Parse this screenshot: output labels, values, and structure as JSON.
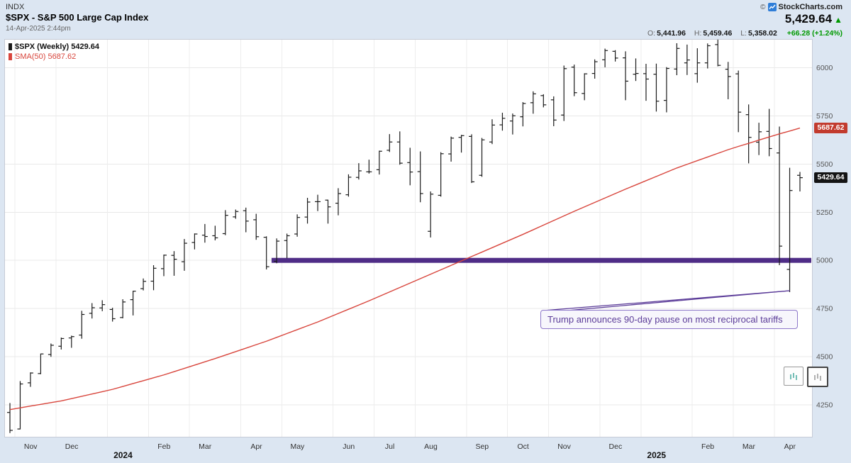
{
  "header": {
    "exchange": "INDX",
    "title": "$SPX - S&P 500 Large Cap Index",
    "timestamp": "14-Apr-2025 2:44pm",
    "logo": {
      "prefix": "©",
      "name": "StockCharts.com"
    },
    "price": "5,429.64",
    "direction": "▲",
    "quote": {
      "open_label": "O:",
      "open": "5,441.96",
      "high_label": "H:",
      "high": "5,459.46",
      "low_label": "L:",
      "low": "5,358.02",
      "change": "+66.28 (+1.24%)"
    }
  },
  "legend": {
    "series1": "$SPX (Weekly) 5429.64",
    "series2": "SMA(50) 5687.62"
  },
  "axis_labels": {
    "sma_label": "5687.62",
    "close_label": "5429.64"
  },
  "colors": {
    "bg": "#dce6f2",
    "bar": "#1a1a1a",
    "sma_red": "#d8453c",
    "support_purple": "#4f2d87",
    "annotation_purple": "#5c3d99",
    "up_green": "#009900",
    "sma_label_bg": "#c23b2e",
    "close_label_bg": "#141414"
  },
  "chart_data": {
    "type": "bar",
    "subtype": "weekly-ohlc-bars-with-sma-overlay",
    "title": "$SPX - S&P 500 Large Cap Index",
    "ylim": [
      4080,
      6150
    ],
    "y_ticks": [
      4250,
      4500,
      4750,
      5000,
      5250,
      5500,
      5750,
      6000
    ],
    "x_tick_labels": [
      "Nov",
      "Dec",
      "2024",
      "Feb",
      "Mar",
      "Apr",
      "May",
      "Jun",
      "Jul",
      "Aug",
      "Sep",
      "Oct",
      "Nov",
      "Dec",
      "2025",
      "Feb",
      "Mar",
      "Apr"
    ],
    "grid": true,
    "legend_position": "top-left",
    "support_line": {
      "value": 5000,
      "start_index": 25.5
    },
    "callout": {
      "text": "Trump announces 90-day pause on most reciprocal tariffs",
      "target_index": 76
    },
    "last_close": 5429.64,
    "sma_last": 5687.62,
    "bars": [
      [
        "2023-10-27",
        4210,
        4259,
        4103,
        4117
      ],
      [
        "2023-11-03",
        4124,
        4373,
        4122,
        4358
      ],
      [
        "2023-11-10",
        4364,
        4418,
        4343,
        4415
      ],
      [
        "2023-11-17",
        4412,
        4516,
        4409,
        4514
      ],
      [
        "2023-11-24",
        4511,
        4568,
        4499,
        4559
      ],
      [
        "2023-12-01",
        4554,
        4599,
        4537,
        4594
      ],
      [
        "2023-12-08",
        4597,
        4609,
        4546,
        4604
      ],
      [
        "2023-12-15",
        4612,
        4738,
        4593,
        4719
      ],
      [
        "2023-12-22",
        4725,
        4778,
        4698,
        4754
      ],
      [
        "2023-12-29",
        4753,
        4793,
        4736,
        4770
      ],
      [
        "2024-01-05",
        4745,
        4754,
        4682,
        4697
      ],
      [
        "2024-01-12",
        4703,
        4798,
        4699,
        4784
      ],
      [
        "2024-01-19",
        4796,
        4842,
        4714,
        4840
      ],
      [
        "2024-01-26",
        4853,
        4906,
        4844,
        4891
      ],
      [
        "2024-02-02",
        4892,
        4975,
        4845,
        4959
      ],
      [
        "2024-02-09",
        4957,
        5030,
        4918,
        5027
      ],
      [
        "2024-02-16",
        5026,
        5048,
        4920,
        5006
      ],
      [
        "2024-02-23",
        4993,
        5111,
        4946,
        5089
      ],
      [
        "2024-03-01",
        5093,
        5140,
        5057,
        5137
      ],
      [
        "2024-03-08",
        5131,
        5189,
        5092,
        5124
      ],
      [
        "2024-03-15",
        5128,
        5180,
        5104,
        5117
      ],
      [
        "2024-03-22",
        5139,
        5261,
        5131,
        5234
      ],
      [
        "2024-03-28",
        5226,
        5264,
        5216,
        5254
      ],
      [
        "2024-04-05",
        5258,
        5274,
        5146,
        5204
      ],
      [
        "2024-04-12",
        5211,
        5242,
        5107,
        5123
      ],
      [
        "2024-04-19",
        5120,
        5125,
        4953,
        4967
      ],
      [
        "2024-04-26",
        4995,
        5114,
        4985,
        5100
      ],
      [
        "2024-05-03",
        5103,
        5139,
        5011,
        5128
      ],
      [
        "2024-05-10",
        5137,
        5239,
        5123,
        5223
      ],
      [
        "2024-05-17",
        5225,
        5325,
        5191,
        5303
      ],
      [
        "2024-05-24",
        5305,
        5341,
        5256,
        5305
      ],
      [
        "2024-05-31",
        5313,
        5315,
        5191,
        5278
      ],
      [
        "2024-06-07",
        5297,
        5375,
        5234,
        5347
      ],
      [
        "2024-06-14",
        5341,
        5447,
        5331,
        5432
      ],
      [
        "2024-06-21",
        5431,
        5505,
        5420,
        5465
      ],
      [
        "2024-06-28",
        5460,
        5523,
        5451,
        5460
      ],
      [
        "2024-07-05",
        5471,
        5570,
        5446,
        5567
      ],
      [
        "2024-07-12",
        5572,
        5656,
        5563,
        5615
      ],
      [
        "2024-07-19",
        5615,
        5670,
        5497,
        5505
      ],
      [
        "2024-07-26",
        5508,
        5585,
        5390,
        5459
      ],
      [
        "2024-08-02",
        5461,
        5566,
        5302,
        5347
      ],
      [
        "2024-08-09",
        5151,
        5358,
        5119,
        5344
      ],
      [
        "2024-08-16",
        5338,
        5562,
        5331,
        5554
      ],
      [
        "2024-08-23",
        5553,
        5643,
        5513,
        5635
      ],
      [
        "2024-08-30",
        5639,
        5652,
        5560,
        5648
      ],
      [
        "2024-09-06",
        5644,
        5655,
        5402,
        5408
      ],
      [
        "2024-09-13",
        5442,
        5636,
        5434,
        5626
      ],
      [
        "2024-09-20",
        5615,
        5733,
        5604,
        5703
      ],
      [
        "2024-09-27",
        5704,
        5767,
        5674,
        5738
      ],
      [
        "2024-10-04",
        5724,
        5763,
        5654,
        5751
      ],
      [
        "2024-10-11",
        5746,
        5822,
        5696,
        5815
      ],
      [
        "2024-10-18",
        5819,
        5878,
        5762,
        5865
      ],
      [
        "2024-10-25",
        5856,
        5863,
        5795,
        5808
      ],
      [
        "2024-11-01",
        5834,
        5852,
        5697,
        5729
      ],
      [
        "2024-11-08",
        5755,
        6012,
        5724,
        5996
      ],
      [
        "2024-11-15",
        6004,
        6017,
        5853,
        5871
      ],
      [
        "2024-11-22",
        5867,
        5972,
        5832,
        5969
      ],
      [
        "2024-11-29",
        5971,
        6044,
        5944,
        6032
      ],
      [
        "2024-12-06",
        6042,
        6100,
        6003,
        6090
      ],
      [
        "2024-12-13",
        6086,
        6092,
        6033,
        6051
      ],
      [
        "2024-12-20",
        6052,
        6086,
        5832,
        5931
      ],
      [
        "2024-12-27",
        5967,
        6049,
        5932,
        5971
      ],
      [
        "2025-01-03",
        5970,
        6021,
        5829,
        5942
      ],
      [
        "2025-01-10",
        5967,
        6022,
        5773,
        5827
      ],
      [
        "2025-01-17",
        5831,
        6004,
        5769,
        5997
      ],
      [
        "2025-01-24",
        5994,
        6128,
        5962,
        6101
      ],
      [
        "2025-01-31",
        6026,
        6121,
        5963,
        6041
      ],
      [
        "2025-02-07",
        5970,
        6102,
        5923,
        6026
      ],
      [
        "2025-02-14",
        6026,
        6127,
        5997,
        6115
      ],
      [
        "2025-02-21",
        6121,
        6147,
        6008,
        6013
      ],
      [
        "2025-02-28",
        5993,
        6031,
        5837,
        5955
      ],
      [
        "2025-03-07",
        5969,
        5986,
        5666,
        5770
      ],
      [
        "2025-03-14",
        5757,
        5810,
        5504,
        5639
      ],
      [
        "2025-03-21",
        5614,
        5715,
        5547,
        5668
      ],
      [
        "2025-03-28",
        5670,
        5787,
        5541,
        5581
      ],
      [
        "2025-04-04",
        5558,
        5695,
        4975,
        5074
      ],
      [
        "2025-04-11",
        4953,
        5481,
        4835,
        5363
      ],
      [
        "2025-04-14",
        5441.96,
        5459.46,
        5358.02,
        5429.64
      ]
    ],
    "sma50": [
      4225,
      4234,
      4243,
      4252,
      4261,
      4270,
      4282,
      4294,
      4306,
      4318,
      4330,
      4345,
      4360,
      4375,
      4390,
      4405,
      4422,
      4439,
      4456,
      4473,
      4490,
      4508,
      4526,
      4544,
      4562,
      4580,
      4600,
      4620,
      4640,
      4660,
      4680,
      4702,
      4724,
      4746,
      4768,
      4790,
      4813,
      4836,
      4859,
      4882,
      4905,
      4928,
      4951,
      4974,
      4997,
      5020,
      5043,
      5066,
      5089,
      5112,
      5135,
      5159,
      5183,
      5207,
      5231,
      5255,
      5278,
      5301,
      5324,
      5347,
      5370,
      5392,
      5414,
      5436,
      5458,
      5480,
      5499,
      5518,
      5537,
      5556,
      5575,
      5592,
      5608,
      5625,
      5641,
      5657,
      5672,
      5687.62
    ]
  }
}
